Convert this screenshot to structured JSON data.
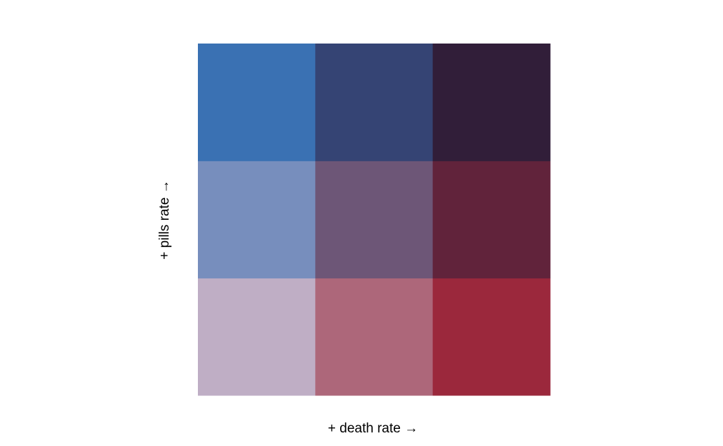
{
  "chart_data": {
    "type": "heatmap",
    "title": "",
    "xlabel": "+ death rate  →",
    "ylabel": "+ pills rate  →",
    "x_levels": 3,
    "y_levels": 3,
    "grid": false,
    "legend": "none",
    "cells": [
      {
        "x": 1,
        "y": 1,
        "color": "#bfaec5"
      },
      {
        "x": 2,
        "y": 1,
        "color": "#ad677a"
      },
      {
        "x": 3,
        "y": 1,
        "color": "#9b283c"
      },
      {
        "x": 1,
        "y": 2,
        "color": "#778ebd"
      },
      {
        "x": 2,
        "y": 2,
        "color": "#6d5677"
      },
      {
        "x": 3,
        "y": 2,
        "color": "#61233b"
      },
      {
        "x": 1,
        "y": 3,
        "color": "#3a71b3"
      },
      {
        "x": 2,
        "y": 3,
        "color": "#354474"
      },
      {
        "x": 3,
        "y": 3,
        "color": "#311e39"
      }
    ]
  }
}
